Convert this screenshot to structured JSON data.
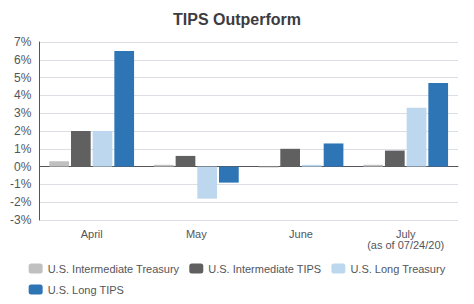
{
  "chart_data": {
    "type": "bar",
    "title": "TIPS Outperform",
    "categories": [
      "April",
      "May",
      "June",
      "July\n(as of 07/24/20)"
    ],
    "series": [
      {
        "name": "U.S. Intermediate Treasury",
        "color": "#c0c0c0",
        "values": [
          0.3,
          0.1,
          -0.05,
          0.1
        ]
      },
      {
        "name": "U.S. Intermediate TIPS",
        "color": "#606060",
        "values": [
          2.0,
          0.6,
          1.0,
          0.9
        ]
      },
      {
        "name": "U.S. Long Treasury",
        "color": "#bdd7ee",
        "values": [
          2.0,
          -1.8,
          0.1,
          3.3
        ]
      },
      {
        "name": "U.S. Long TIPS",
        "color": "#2e75b6",
        "values": [
          6.5,
          -0.9,
          1.3,
          4.7
        ]
      }
    ],
    "ylim": [
      -3,
      7
    ],
    "yticks": [
      {
        "value": -3,
        "label": "-3%"
      },
      {
        "value": -2,
        "label": "-2%"
      },
      {
        "value": -1,
        "label": "-1%"
      },
      {
        "value": 0,
        "label": "0%"
      },
      {
        "value": 1,
        "label": "1%"
      },
      {
        "value": 2,
        "label": "2%"
      },
      {
        "value": 3,
        "label": "3%"
      },
      {
        "value": 4,
        "label": "4%"
      },
      {
        "value": 5,
        "label": "5%"
      },
      {
        "value": 6,
        "label": "6%"
      },
      {
        "value": 7,
        "label": "7%"
      }
    ],
    "grid": true,
    "legend": "bottom"
  }
}
